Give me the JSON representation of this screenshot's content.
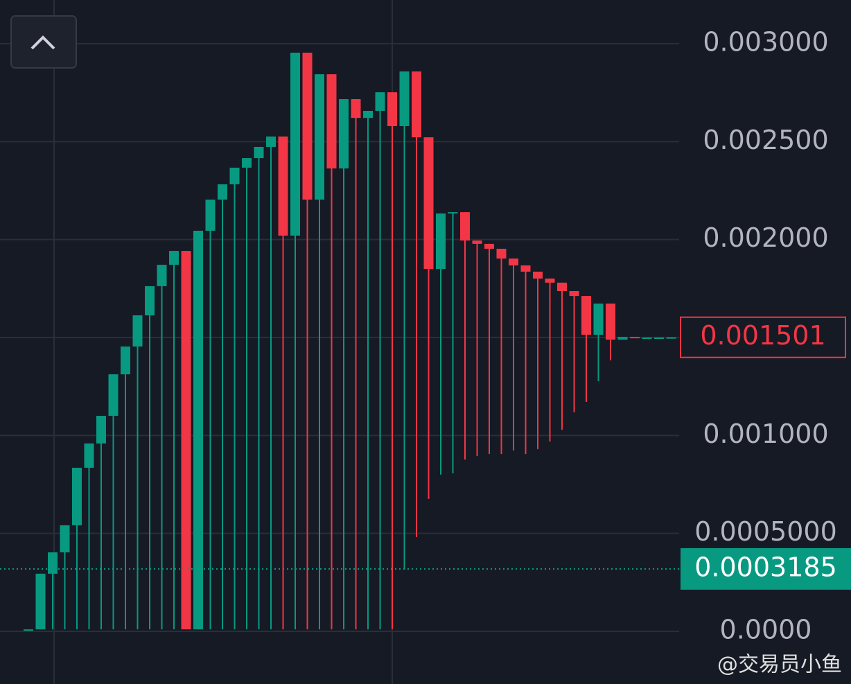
{
  "chart_data": {
    "type": "candlestick",
    "open": [
      1e-05,
      1e-05,
      0.000294,
      0.000403,
      0.000541,
      0.000835,
      0.000959,
      0.0011,
      0.001312,
      0.001454,
      0.001613,
      0.001762,
      0.001871,
      0.001942,
      1e-05,
      0.002045,
      0.002204,
      0.002282,
      0.002367,
      0.002416,
      0.002473,
      0.002526,
      0.00202,
      0.002954,
      0.002204,
      0.002844,
      0.002363,
      0.002717,
      0.002621,
      0.002657,
      0.002752,
      0.002579,
      0.002858,
      0.002522,
      0.00185,
      0.002133,
      0.00214,
      0.001995,
      0.001978,
      0.001953,
      0.001903,
      0.001868,
      0.001836,
      0.001801,
      0.00178,
      0.001737,
      0.001712,
      0.001514,
      0.001673,
      0.001489,
      0.001503,
      0.0015,
      0.0015,
      0.0015
    ],
    "high": [
      1e-05,
      0.000294,
      0.000403,
      0.000541,
      0.000835,
      0.000959,
      0.0011,
      0.001312,
      0.001454,
      0.001613,
      0.001762,
      0.001871,
      0.001942,
      0.001942,
      0.002045,
      0.002204,
      0.002282,
      0.002367,
      0.002416,
      0.002473,
      0.002526,
      0.002526,
      0.002954,
      0.002954,
      0.002844,
      0.002844,
      0.002717,
      0.002717,
      0.002657,
      0.002752,
      0.002752,
      0.002858,
      0.002858,
      0.002522,
      0.002133,
      0.00214,
      0.00214,
      0.001995,
      0.001978,
      0.001953,
      0.001903,
      0.001868,
      0.001836,
      0.001801,
      0.00178,
      0.001737,
      0.001712,
      0.001673,
      0.001673,
      0.001503,
      0.001503,
      0.0015,
      0.0015,
      0.001501
    ],
    "low": [
      1e-05,
      1e-05,
      1e-05,
      1e-05,
      1e-05,
      1e-05,
      1e-05,
      1e-05,
      1e-05,
      1e-05,
      1e-05,
      1e-05,
      1e-05,
      1e-05,
      1e-05,
      1e-05,
      1e-05,
      1e-05,
      1e-05,
      1e-05,
      1e-05,
      1e-05,
      1e-05,
      1e-05,
      1e-05,
      1e-05,
      1e-05,
      1e-05,
      1e-05,
      1e-05,
      1e-05,
      0.000315,
      0.000481,
      0.000676,
      0.0008,
      0.000806,
      0.000877,
      0.000895,
      0.000905,
      0.000905,
      0.000923,
      0.000905,
      0.00093,
      0.000969,
      0.001029,
      0.001118,
      0.001171,
      0.001277,
      0.001383,
      0.001489,
      0.0015,
      0.0015,
      0.0015,
      0.0015
    ],
    "close": [
      1e-05,
      0.000294,
      0.000403,
      0.000541,
      0.000835,
      0.000959,
      0.0011,
      0.001312,
      0.001454,
      0.001613,
      0.001762,
      0.001871,
      0.001942,
      1e-05,
      0.002045,
      0.002204,
      0.002282,
      0.002367,
      0.002416,
      0.002473,
      0.002526,
      0.00202,
      0.002954,
      0.002204,
      0.002844,
      0.002363,
      0.002717,
      0.002621,
      0.002657,
      0.002752,
      0.002579,
      0.002858,
      0.002522,
      0.00185,
      0.002133,
      0.00214,
      0.001995,
      0.001978,
      0.001953,
      0.001903,
      0.001868,
      0.001836,
      0.001801,
      0.00178,
      0.001737,
      0.001712,
      0.001514,
      0.001673,
      0.001489,
      0.001503,
      0.0015,
      0.0015,
      0.0015,
      0.001501
    ],
    "up_color": "#089981",
    "down_color": "#f23645",
    "ylim": [
      -0.000269,
      0.003223
    ],
    "yticks": [
      {
        "value": 0,
        "label": "0.0000"
      },
      {
        "value": 0.0005,
        "label": "0.0005000"
      },
      {
        "value": 0.001,
        "label": "0.001000"
      },
      0.0015,
      {
        "value": 0.002,
        "label": "0.002000"
      },
      {
        "value": 0.0025,
        "label": "0.002500"
      },
      {
        "value": 0.003,
        "label": "0.003000"
      }
    ],
    "grid": true,
    "price_lines": [
      {
        "value": 0.001501,
        "label": "0.001501",
        "color": "#f23645",
        "style": "box"
      },
      {
        "value": 0.0003185,
        "label": "0.0003185",
        "color": "#089981",
        "style": "filled"
      }
    ],
    "watermark": "@交易员小鱼"
  }
}
